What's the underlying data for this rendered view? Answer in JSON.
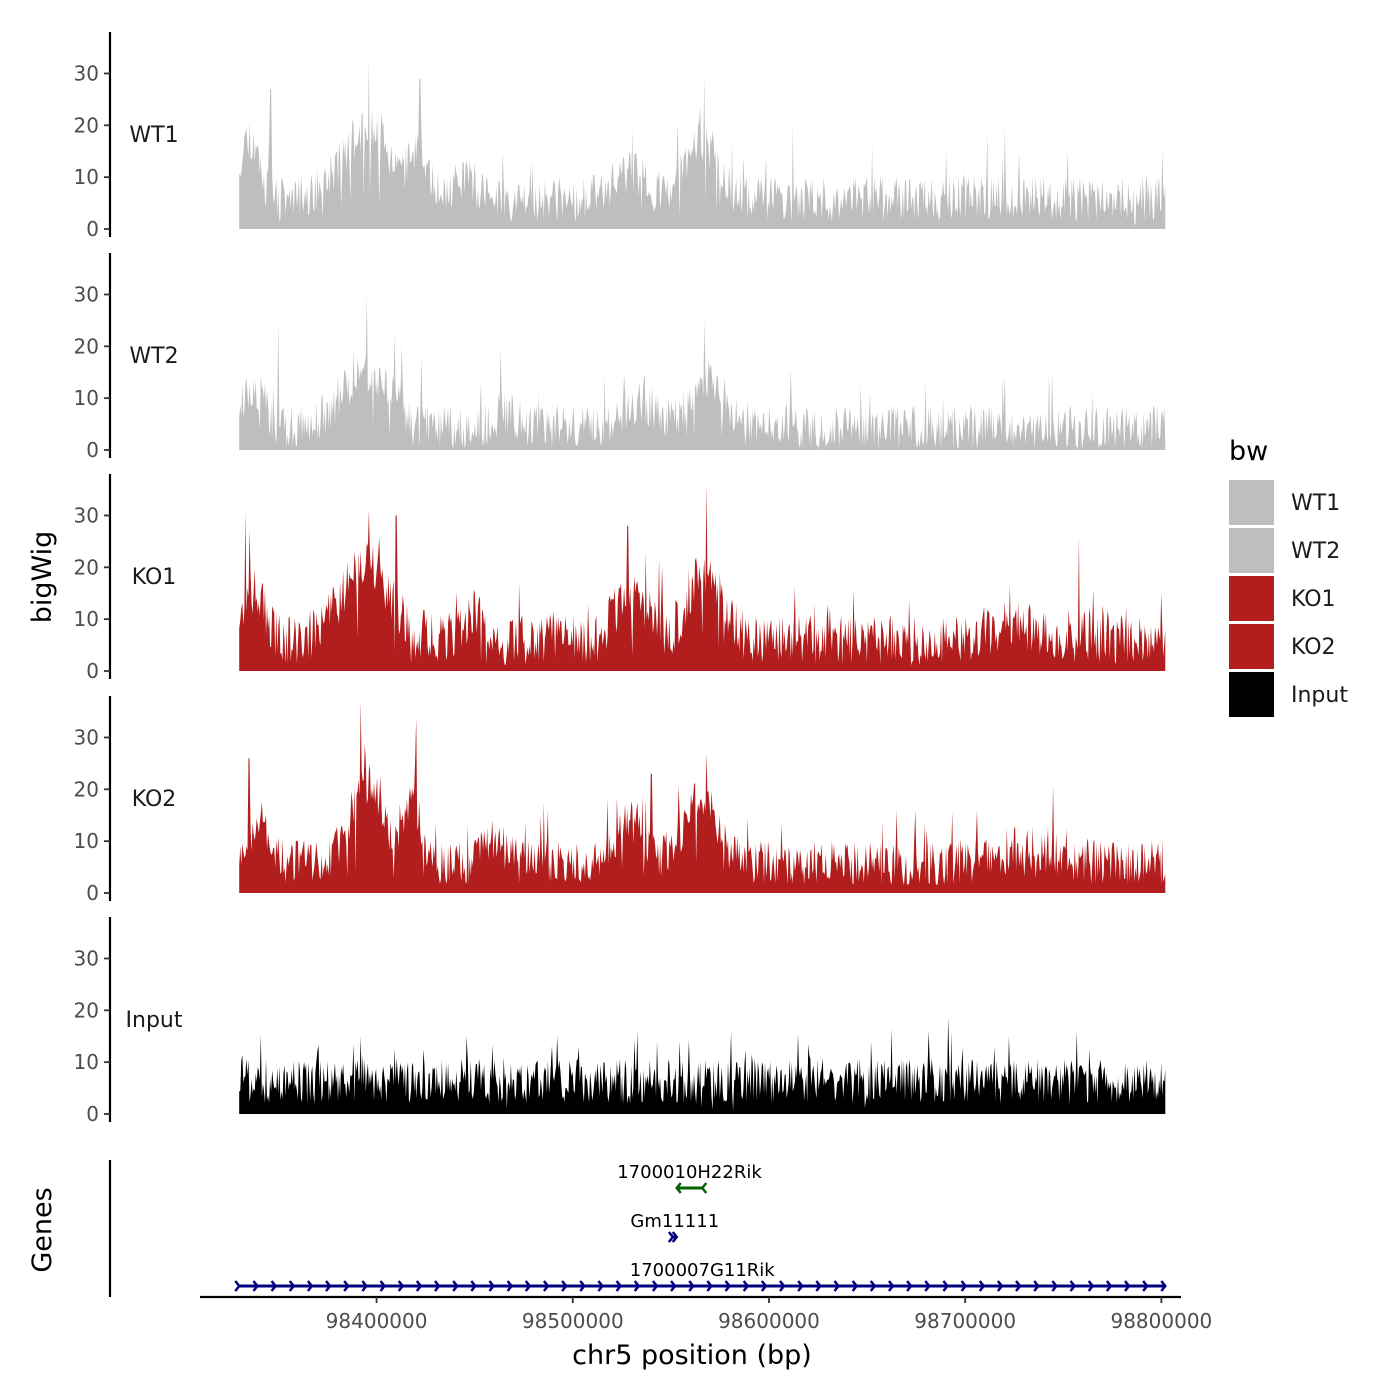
{
  "chart_data": {
    "type": "area",
    "title": "",
    "xlabel": "chr5 position (bp)",
    "ylabel": "bigWig",
    "genes_label": "Genes",
    "xlim": [
      98310000,
      98810000
    ],
    "ylim": [
      0,
      38
    ],
    "data_range": [
      98330000,
      98802000
    ],
    "x_ticks": [
      98400000,
      98500000,
      98600000,
      98700000,
      98800000
    ],
    "x_tick_labels": [
      "98400000",
      "98500000",
      "98600000",
      "98700000",
      "98800000"
    ],
    "y_ticks": [
      0,
      10,
      20,
      30
    ],
    "y_tick_labels": [
      "0",
      "10",
      "20",
      "30"
    ],
    "series": [
      {
        "name": "WT1",
        "color": "#bebebe",
        "seed": 11,
        "base": 5,
        "noise": 4,
        "peaks": [
          [
            98335000,
            12,
            7000
          ],
          [
            98395000,
            13,
            18000
          ],
          [
            98422000,
            8,
            6000
          ],
          [
            98565000,
            11,
            12000
          ],
          [
            98530000,
            5,
            12000
          ],
          [
            98445000,
            4,
            8000
          ]
        ],
        "spikes": [
          [
            98396000,
            33
          ],
          [
            98346000,
            27
          ],
          [
            98567000,
            30
          ],
          [
            98422000,
            29
          ],
          [
            98612000,
            20
          ],
          [
            98752000,
            15
          ]
        ]
      },
      {
        "name": "WT2",
        "color": "#bebebe",
        "seed": 23,
        "base": 3.5,
        "noise": 4,
        "peaks": [
          [
            98395000,
            11,
            18000
          ],
          [
            98337000,
            8,
            8000
          ],
          [
            98568000,
            10,
            12000
          ],
          [
            98535000,
            5,
            10000
          ],
          [
            98465000,
            3,
            8000
          ]
        ],
        "spikes": [
          [
            98395000,
            30
          ],
          [
            98350000,
            25
          ],
          [
            98567000,
            25
          ],
          [
            98413000,
            20
          ],
          [
            98720000,
            15
          ],
          [
            98680000,
            13
          ]
        ]
      },
      {
        "name": "KO1",
        "color": "#b21e1e",
        "seed": 37,
        "base": 5,
        "noise": 4.5,
        "peaks": [
          [
            98395000,
            14,
            18000
          ],
          [
            98337000,
            10,
            8000
          ],
          [
            98568000,
            14,
            12000
          ],
          [
            98530000,
            9,
            12000
          ],
          [
            98450000,
            5,
            8000
          ],
          [
            98725000,
            3,
            20000
          ]
        ],
        "spikes": [
          [
            98396000,
            31
          ],
          [
            98333000,
            31
          ],
          [
            98568000,
            36
          ],
          [
            98528000,
            28
          ],
          [
            98758000,
            26
          ],
          [
            98410000,
            30
          ],
          [
            98800000,
            15
          ]
        ]
      },
      {
        "name": "KO2",
        "color": "#b21e1e",
        "seed": 53,
        "base": 5,
        "noise": 4,
        "peaks": [
          [
            98395000,
            15,
            12000
          ],
          [
            98418000,
            11,
            7000
          ],
          [
            98565000,
            12,
            12000
          ],
          [
            98530000,
            8,
            10000
          ],
          [
            98340000,
            8,
            8000
          ],
          [
            98460000,
            4,
            8000
          ],
          [
            98730000,
            3,
            20000
          ]
        ],
        "spikes": [
          [
            98392000,
            37
          ],
          [
            98420000,
            34
          ],
          [
            98335000,
            26
          ],
          [
            98568000,
            27
          ],
          [
            98540000,
            23
          ],
          [
            98665000,
            16
          ],
          [
            98706000,
            16
          ]
        ]
      },
      {
        "name": "Input",
        "color": "#000000",
        "seed": 71,
        "base": 5.5,
        "noise": 4,
        "peaks": [],
        "spikes": [
          [
            98392000,
            15
          ],
          [
            98446000,
            15
          ],
          [
            98757000,
            16
          ],
          [
            98543000,
            14
          ],
          [
            98652000,
            14
          ],
          [
            98715000,
            13
          ],
          [
            98503000,
            13
          ]
        ]
      }
    ],
    "genes": [
      {
        "name": "1700010H22Rik",
        "start": 98553000,
        "end": 98566000,
        "strand": "-",
        "color": "#006400",
        "row": 0
      },
      {
        "name": "Gm11111",
        "start": 98551000,
        "end": 98553000,
        "strand": "+",
        "color": "#000080",
        "row": 1
      },
      {
        "name": "1700007G11Rik",
        "start": 98330000,
        "end": 98802000,
        "strand": "+",
        "color": "#000080",
        "row": 2
      }
    ],
    "legend": {
      "title": "bw",
      "position": "right",
      "entries": [
        {
          "label": "WT1",
          "color": "#bebebe"
        },
        {
          "label": "WT2",
          "color": "#bebebe"
        },
        {
          "label": "KO1",
          "color": "#b21e1e"
        },
        {
          "label": "KO2",
          "color": "#b21e1e"
        },
        {
          "label": "Input",
          "color": "#000000"
        }
      ]
    }
  }
}
